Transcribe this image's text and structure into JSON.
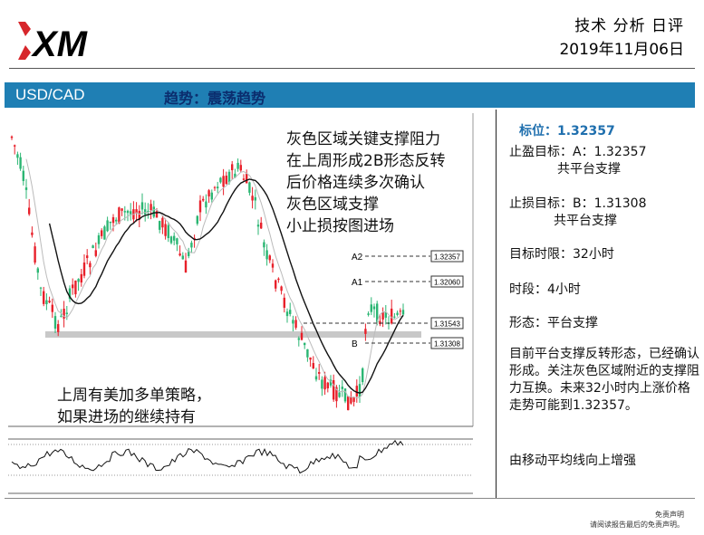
{
  "header": {
    "logo_text": "XM",
    "title": "技术 分析 日评",
    "date": "2019年11月06日"
  },
  "bar": {
    "pair": "USD/CAD",
    "trend": "趋势：震荡趋势"
  },
  "chart_notes": {
    "top_lines": "灰色区域关键支撑阻力\n在上周形成2B形态反转\n后价格连续多次确认\n灰色区域支撑\n小止损按图进场",
    "bottom_lines": "上周有美加多单策略，\n如果进场的继续持有"
  },
  "chart_levels": [
    {
      "tag": "A2",
      "value": "1.32357"
    },
    {
      "tag": "A1",
      "value": "1.32060"
    },
    {
      "tag": "",
      "value": "1.31543"
    },
    {
      "tag": "B",
      "value": "1.31308"
    }
  ],
  "right_panel": {
    "target": "标位：1.32357",
    "take_profit": "止盈目标：A：1.32357",
    "take_profit_note": "共平台支撑",
    "stop_loss": "止损目标：B：1.31308",
    "stop_loss_note": "共平台支撑",
    "time_limit": "目标时限：32小时",
    "period": "时段：4小时",
    "pattern": "形态：平台支撑",
    "analysis": "目前平台支撑反转形态，已经确认形成。关注灰色区域附近的支撑阻力互换。未来32小时内上涨价格走势可能到1.32357。",
    "ma_note": "由移动平均线向上增强"
  },
  "disclaimer": {
    "line1": "免责声明",
    "line2": "请阅读报告最后的免责声明。"
  },
  "colors": {
    "bar_bg": "#1f7fb4",
    "trend_text": "#0b2d6e",
    "target_text": "#1f6fae",
    "bull_candle": "#2bb673",
    "bear_candle": "#e8202a",
    "logo_red": "#d7262b",
    "support_zone": "#c8c8c8"
  }
}
